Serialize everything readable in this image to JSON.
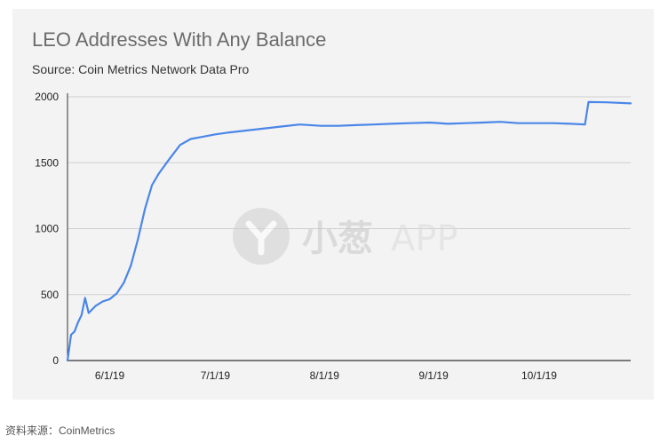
{
  "chart_data": {
    "type": "line",
    "title": "LEO Addresses With Any Balance",
    "subtitle": "Source: Coin Metrics Network Data Pro",
    "xlabel": "",
    "ylabel": "",
    "x_ticks": [
      "6/1/19",
      "7/1/19",
      "8/1/19",
      "9/1/19",
      "10/1/19"
    ],
    "y_ticks": [
      0,
      500,
      1000,
      1500,
      2000
    ],
    "ylim": [
      0,
      2000
    ],
    "xlim": [
      "2019-05-20",
      "2019-10-27"
    ],
    "grid": true,
    "legend": "none",
    "series": [
      {
        "color": "#4a86e8",
        "x": [
          "2019-05-20",
          "2019-05-21",
          "2019-05-22",
          "2019-05-23",
          "2019-05-24",
          "2019-05-25",
          "2019-05-26",
          "2019-05-28",
          "2019-05-30",
          "2019-06-01",
          "2019-06-03",
          "2019-06-05",
          "2019-06-07",
          "2019-06-09",
          "2019-06-11",
          "2019-06-13",
          "2019-06-15",
          "2019-06-18",
          "2019-06-21",
          "2019-06-24",
          "2019-06-27",
          "2019-06-30",
          "2019-07-01",
          "2019-07-05",
          "2019-07-10",
          "2019-07-15",
          "2019-07-20",
          "2019-07-25",
          "2019-07-31",
          "2019-08-05",
          "2019-08-10",
          "2019-08-15",
          "2019-08-20",
          "2019-08-25",
          "2019-08-31",
          "2019-09-05",
          "2019-09-10",
          "2019-09-15",
          "2019-09-20",
          "2019-09-25",
          "2019-09-30",
          "2019-10-05",
          "2019-10-10",
          "2019-10-14",
          "2019-10-15",
          "2019-10-20",
          "2019-10-27"
        ],
        "y": [
          0,
          195,
          220,
          290,
          345,
          475,
          360,
          415,
          448,
          465,
          510,
          590,
          720,
          920,
          1150,
          1330,
          1420,
          1530,
          1635,
          1680,
          1695,
          1710,
          1715,
          1730,
          1745,
          1760,
          1775,
          1790,
          1780,
          1780,
          1785,
          1790,
          1795,
          1800,
          1805,
          1795,
          1800,
          1805,
          1810,
          1800,
          1800,
          1800,
          1795,
          1790,
          1960,
          1958,
          1950
        ]
      }
    ]
  },
  "watermark": {
    "chinese": "小葱",
    "latin": "APP"
  },
  "source_note": "资料来源：CoinMetrics"
}
